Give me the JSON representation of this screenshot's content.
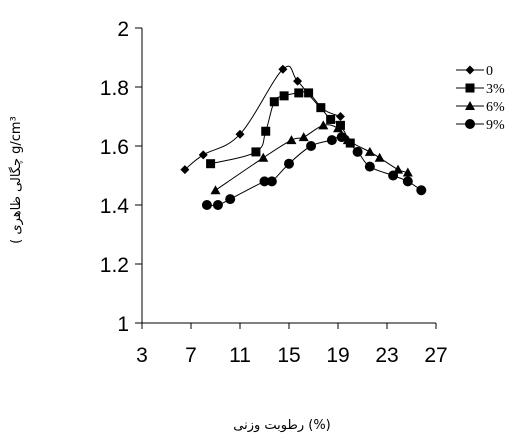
{
  "chart_data": {
    "type": "line",
    "title": "",
    "xlabel": "رطوبت وزنی (%)",
    "ylabel": "( چگالی ظاهری g/cm³",
    "xlim": [
      3,
      27
    ],
    "ylim": [
      1,
      2
    ],
    "x_ticks": [
      "3",
      "7",
      "11",
      "15",
      "19",
      "23",
      "27"
    ],
    "y_ticks": [
      "1",
      "1.2",
      "1.4",
      "1.6",
      "1.8",
      "2"
    ],
    "grid": false,
    "legend_position": "right",
    "series": [
      {
        "name": "0",
        "marker": "diamond",
        "points": [
          [
            6.5,
            1.52
          ],
          [
            8,
            1.57
          ],
          [
            11,
            1.64
          ],
          [
            14.5,
            1.86
          ],
          [
            15.7,
            1.82
          ],
          [
            17.6,
            1.73
          ],
          [
            19.2,
            1.7
          ]
        ]
      },
      {
        "name": "3%",
        "marker": "square",
        "points": [
          [
            8.6,
            1.54
          ],
          [
            12.3,
            1.58
          ],
          [
            13.1,
            1.65
          ],
          [
            13.8,
            1.75
          ],
          [
            14.6,
            1.77
          ],
          [
            15.8,
            1.78
          ],
          [
            16.6,
            1.78
          ],
          [
            17.6,
            1.73
          ],
          [
            18.4,
            1.69
          ],
          [
            19.2,
            1.67
          ],
          [
            20.0,
            1.61
          ]
        ]
      },
      {
        "name": "6%",
        "marker": "triangle",
        "points": [
          [
            9.0,
            1.45
          ],
          [
            12.9,
            1.56
          ],
          [
            15.2,
            1.62
          ],
          [
            16.2,
            1.63
          ],
          [
            17.8,
            1.67
          ],
          [
            19.0,
            1.66
          ],
          [
            19.8,
            1.62
          ],
          [
            21.6,
            1.58
          ],
          [
            22.4,
            1.56
          ],
          [
            23.9,
            1.52
          ],
          [
            24.7,
            1.51
          ]
        ]
      },
      {
        "name": "9%",
        "marker": "circle",
        "points": [
          [
            8.3,
            1.4
          ],
          [
            9.2,
            1.4
          ],
          [
            10.2,
            1.42
          ],
          [
            13.0,
            1.48
          ],
          [
            13.6,
            1.48
          ],
          [
            15.0,
            1.54
          ],
          [
            16.8,
            1.6
          ],
          [
            18.5,
            1.62
          ],
          [
            19.3,
            1.63
          ],
          [
            20.6,
            1.58
          ],
          [
            21.6,
            1.53
          ],
          [
            23.5,
            1.5
          ],
          [
            24.7,
            1.48
          ],
          [
            25.8,
            1.45
          ]
        ]
      }
    ]
  }
}
